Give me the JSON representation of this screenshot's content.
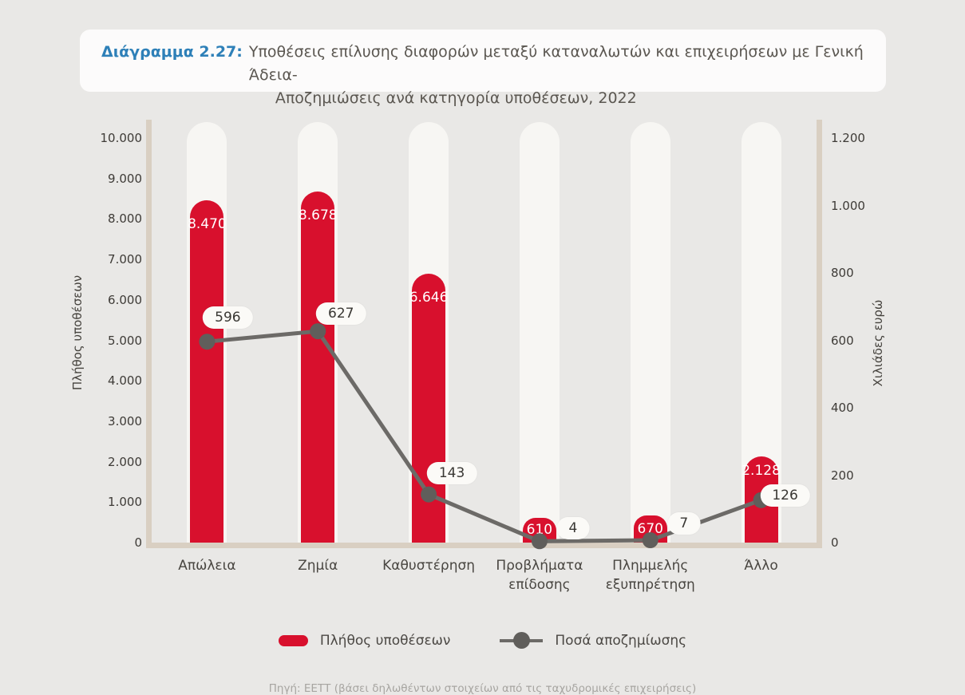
{
  "title": {
    "prefix": "Διάγραμμα 2.27:",
    "line1": "Υποθέσεις επίλυσης διαφορών μεταξύ καταναλωτών και επιχειρήσεων με Γενική Άδεια-",
    "line2": "Αποζημιώσεις ανά κατηγορία υποθέσεων, 2022"
  },
  "chart_data": {
    "type": "bar",
    "subtype": "combo-bar-line",
    "categories": [
      "Απώλεια",
      "Ζημία",
      "Καθυστέρηση",
      "Προβλήματα επίδοσης",
      "Πλημμελής εξυπηρέτηση",
      "Άλλο"
    ],
    "series": [
      {
        "name": "Πλήθος υποθέσεων",
        "type": "bar",
        "axis": "left",
        "color": "#d8102d",
        "values": [
          8470,
          8678,
          6646,
          610,
          670,
          2128
        ],
        "labels": [
          "8.470",
          "8.678",
          "6.646",
          "610",
          "670",
          "2.128"
        ]
      },
      {
        "name": "Ποσά αποζημίωσης",
        "type": "line",
        "axis": "right",
        "color": "#6c6a67",
        "values": [
          596,
          627,
          143,
          4,
          7,
          126
        ],
        "labels": [
          "596",
          "627",
          "143",
          "4",
          "7",
          "126"
        ]
      }
    ],
    "left_axis": {
      "label": "Πλήθος υποθέσεων",
      "min": 0,
      "max": 10000,
      "ticks": [
        "10.000",
        "9.000",
        "8.000",
        "7.000",
        "6.000",
        "5.000",
        "4.000",
        "3.000",
        "2.000",
        "1.000",
        "0"
      ]
    },
    "right_axis": {
      "label": "Χιλιάδες ευρώ",
      "min": 0,
      "max": 1200,
      "ticks": [
        "1.200",
        "1.000",
        "800",
        "600",
        "400",
        "200",
        "0"
      ]
    },
    "grid": false,
    "legend_position": "bottom"
  },
  "source": "Πηγή: ΕΕΤΤ (βάσει δηλωθέντων στοιχείων από τις ταχυδρομικές επιχειρήσεις)",
  "colors": {
    "page_background": "#e9e8e6",
    "card_background": "#fcfbfb",
    "title_accent": "#2e80b8",
    "title_text": "#5b5751",
    "bar_red": "#d8102d",
    "bar_track": "#f7f6f3",
    "axis_frame_tan": "#d9cfc2",
    "line_gray": "#6c6a67",
    "dot_gray": "#605e5b",
    "tick_text": "#3e3b37",
    "pill_background": "#fbfaf7"
  }
}
